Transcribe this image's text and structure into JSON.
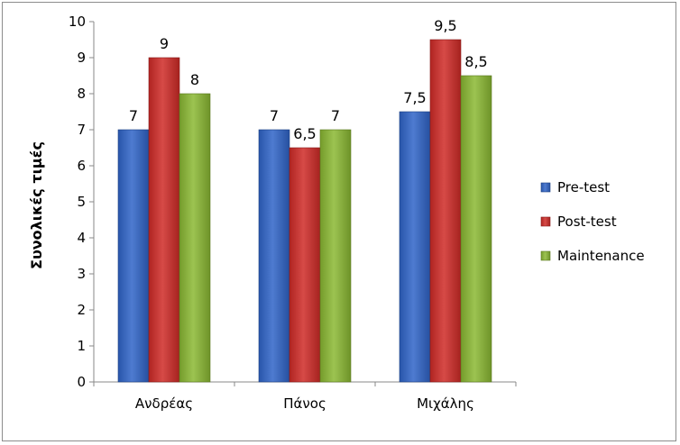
{
  "chart_data": {
    "type": "bar",
    "title": "",
    "xlabel": "",
    "ylabel": "Συνολικές τιμές",
    "ylim": [
      0,
      10
    ],
    "yticks": [
      "0",
      "1",
      "2",
      "3",
      "4",
      "5",
      "6",
      "7",
      "8",
      "9",
      "10"
    ],
    "categories": [
      "Ανδρέας",
      "Πάνος",
      "Μιχάλης"
    ],
    "series": [
      {
        "name": "Pre-test",
        "values": [
          7,
          7,
          7.5
        ],
        "labels": [
          "7",
          "7",
          "7,5"
        ],
        "color": "#2f64c8"
      },
      {
        "name": "Post-test",
        "values": [
          9,
          6.5,
          9.5
        ],
        "labels": [
          "9",
          "6,5",
          "9,5"
        ],
        "color": "#cf2a27"
      },
      {
        "name": "Maintenance",
        "values": [
          8,
          7,
          8.5
        ],
        "labels": [
          "8",
          "7",
          "8,5"
        ],
        "color": "#8ab832"
      }
    ],
    "grid": false,
    "legend_position": "right"
  }
}
